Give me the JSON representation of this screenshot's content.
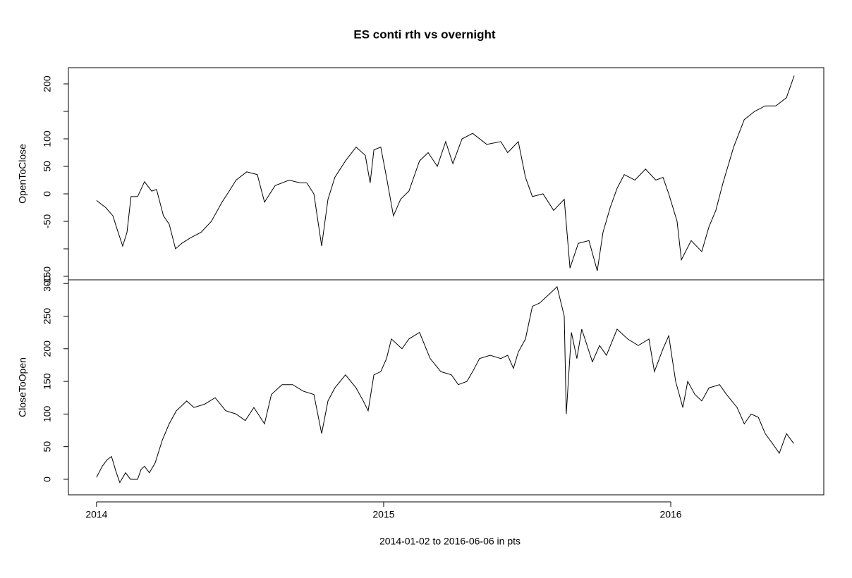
{
  "chart_data": {
    "title": "ES conti rth vs overnight",
    "x_label": "2014-01-02 to 2016-06-06   in pts",
    "xlim": [
      2013.902,
      2016.533
    ],
    "xticks": [
      2014,
      2015,
      2016
    ],
    "color": "#000000",
    "panels": [
      {
        "type": "line",
        "y_label": "OpenToClose",
        "ylim": [
          -156.4,
          229.5
        ],
        "yticks": [
          -150,
          -50,
          0,
          50,
          100,
          200
        ],
        "yticks_unlabeled": [
          -100,
          150
        ],
        "x": [
          2014.0,
          2014.032,
          2014.057,
          2014.069,
          2014.091,
          2014.106,
          2014.12,
          2014.143,
          2014.167,
          2014.192,
          2014.209,
          2014.233,
          2014.253,
          2014.275,
          2014.297,
          2014.327,
          2014.364,
          2014.4,
          2014.437,
          2014.462,
          2014.486,
          2014.523,
          2014.56,
          2014.585,
          2014.622,
          2014.671,
          2014.708,
          2014.732,
          2014.757,
          2014.784,
          2014.806,
          2014.83,
          2014.867,
          2014.904,
          2014.936,
          2014.953,
          2014.966,
          2014.99,
          2015.01,
          2015.034,
          2015.059,
          2015.088,
          2015.125,
          2015.155,
          2015.187,
          2015.216,
          2015.241,
          2015.273,
          2015.31,
          2015.359,
          2015.408,
          2015.432,
          2015.469,
          2015.494,
          2015.518,
          2015.555,
          2015.592,
          2015.629,
          2015.649,
          2015.678,
          2015.715,
          2015.744,
          2015.764,
          2015.789,
          2015.813,
          2015.838,
          2015.875,
          2015.912,
          2015.948,
          2015.973,
          2015.993,
          2016.022,
          2016.037,
          2016.071,
          2016.108,
          2016.133,
          2016.157,
          2016.182,
          2016.219,
          2016.256,
          2016.292,
          2016.329,
          2016.366,
          2016.403,
          2016.43
        ],
        "values": [
          -12,
          -25,
          -40,
          -60,
          -95,
          -70,
          -5,
          -5,
          22,
          5,
          8,
          -40,
          -55,
          -100,
          -90,
          -80,
          -70,
          -50,
          -15,
          5,
          25,
          40,
          35,
          -15,
          15,
          25,
          20,
          20,
          0,
          -95,
          -10,
          30,
          60,
          85,
          70,
          20,
          80,
          85,
          30,
          -40,
          -10,
          5,
          60,
          75,
          50,
          95,
          55,
          100,
          110,
          90,
          95,
          75,
          95,
          30,
          -5,
          0,
          -30,
          -10,
          -135,
          -90,
          -85,
          -140,
          -70,
          -25,
          10,
          35,
          25,
          45,
          25,
          30,
          0,
          -50,
          -120,
          -85,
          -105,
          -60,
          -30,
          20,
          85,
          135,
          150,
          160,
          160,
          175,
          215
        ]
      },
      {
        "type": "line",
        "y_label": "CloseToOpen",
        "ylim": [
          -23.8,
          305.6
        ],
        "yticks": [
          0,
          50,
          100,
          150,
          200,
          250,
          300
        ],
        "yticks_unlabeled": [],
        "x": [
          2014.0,
          2014.02,
          2014.037,
          2014.052,
          2014.069,
          2014.081,
          2014.101,
          2014.118,
          2014.143,
          2014.155,
          2014.167,
          2014.184,
          2014.204,
          2014.229,
          2014.253,
          2014.278,
          2014.314,
          2014.339,
          2014.376,
          2014.413,
          2014.45,
          2014.486,
          2014.518,
          2014.548,
          2014.585,
          2014.609,
          2014.646,
          2014.683,
          2014.72,
          2014.757,
          2014.784,
          2014.806,
          2014.83,
          2014.867,
          2014.904,
          2014.929,
          2014.946,
          2014.966,
          2014.99,
          2015.01,
          2015.027,
          2015.064,
          2015.088,
          2015.125,
          2015.162,
          2015.199,
          2015.236,
          2015.26,
          2015.29,
          2015.31,
          2015.334,
          2015.371,
          2015.408,
          2015.432,
          2015.452,
          2015.469,
          2015.494,
          2015.518,
          2015.543,
          2015.58,
          2015.604,
          2015.629,
          2015.636,
          2015.654,
          2015.673,
          2015.69,
          2015.727,
          2015.752,
          2015.776,
          2015.813,
          2015.85,
          2015.887,
          2015.924,
          2015.943,
          2015.973,
          2015.993,
          2016.017,
          2016.042,
          2016.059,
          2016.084,
          2016.108,
          2016.133,
          2016.17,
          2016.194,
          2016.231,
          2016.256,
          2016.28,
          2016.305,
          2016.329,
          2016.354,
          2016.378,
          2016.403,
          2016.428
        ],
        "values": [
          3,
          20,
          30,
          35,
          10,
          -5,
          10,
          0,
          0,
          15,
          20,
          10,
          25,
          60,
          85,
          105,
          120,
          110,
          115,
          125,
          105,
          100,
          90,
          110,
          85,
          130,
          145,
          145,
          135,
          130,
          70,
          120,
          140,
          160,
          140,
          120,
          105,
          160,
          165,
          185,
          215,
          200,
          215,
          225,
          185,
          165,
          160,
          145,
          150,
          165,
          185,
          190,
          185,
          190,
          170,
          195,
          215,
          265,
          270,
          285,
          295,
          250,
          100,
          225,
          185,
          230,
          180,
          205,
          190,
          230,
          215,
          205,
          215,
          165,
          200,
          220,
          150,
          110,
          150,
          130,
          120,
          140,
          145,
          130,
          110,
          85,
          100,
          95,
          70,
          55,
          40,
          70,
          55
        ]
      }
    ]
  }
}
